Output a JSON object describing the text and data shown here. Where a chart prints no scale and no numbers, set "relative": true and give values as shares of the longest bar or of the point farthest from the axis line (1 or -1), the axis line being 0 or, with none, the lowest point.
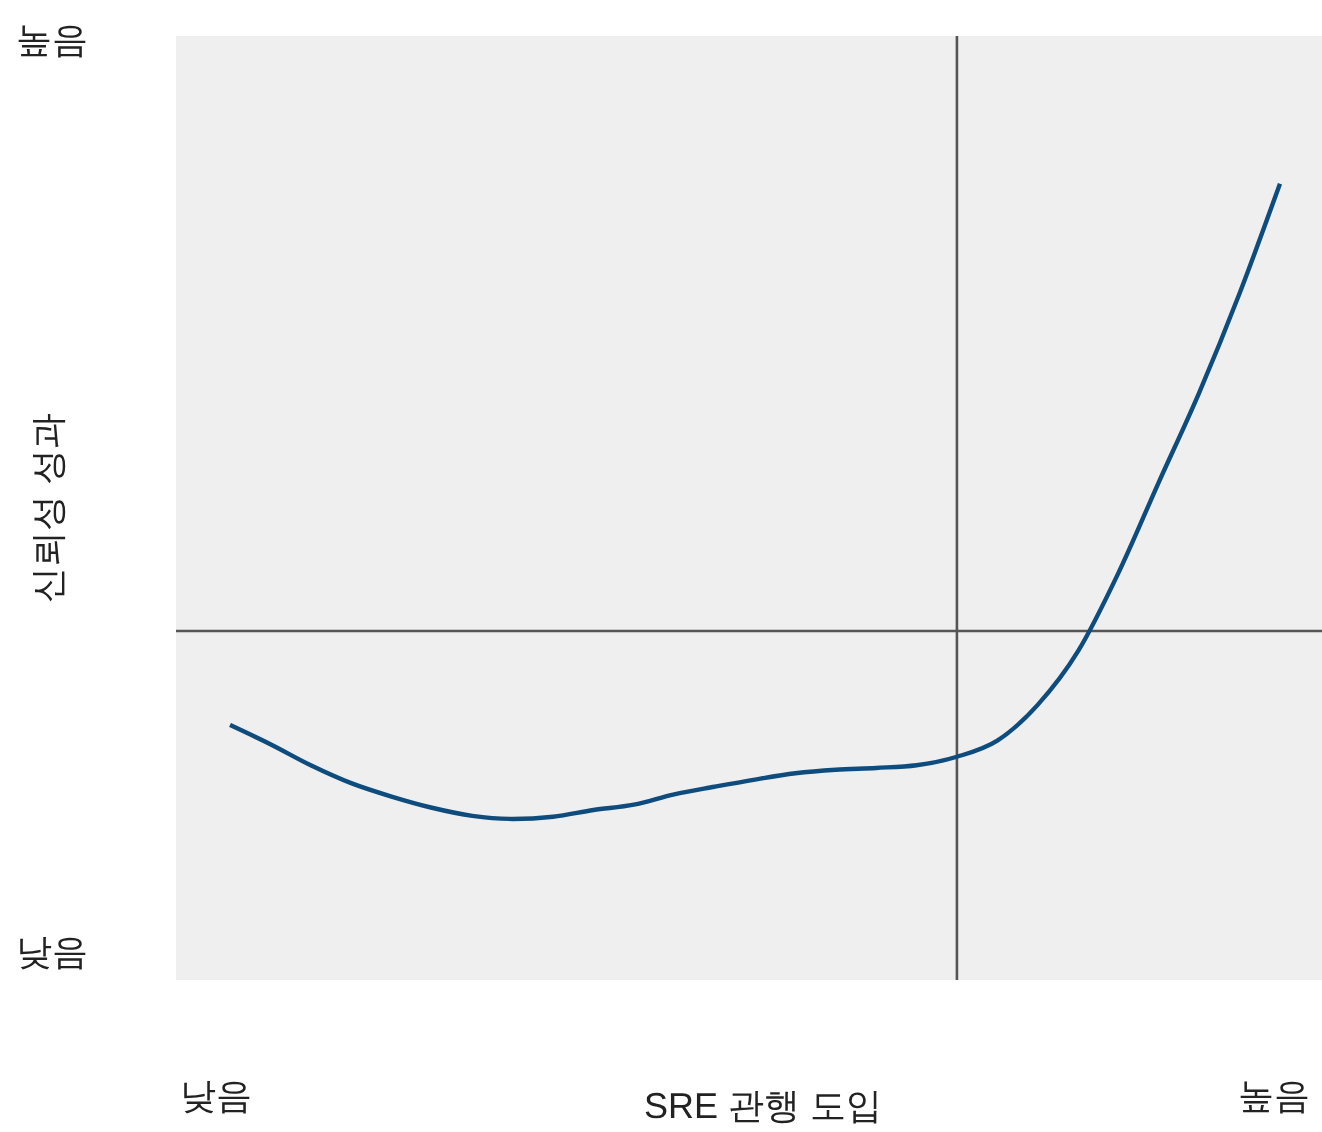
{
  "chart_data": {
    "type": "line",
    "relative": true,
    "ylabel": "신뢰성 성과",
    "categories": [
      null,
      null,
      null,
      null,
      null,
      null,
      null,
      null,
      null,
      null,
      null,
      null,
      null,
      null,
      null,
      null,
      null,
      null,
      null,
      null,
      null,
      null,
      null,
      null,
      null,
      null,
      null
    ],
    "annotations": [
      "높음",
      "낮음",
      "낮음",
      "높음",
      "SRE 관행 도입"
    ],
    "series": [
      {
        "color": "#0e4c7e",
        "values": [
          -0.21,
          -0.253,
          -0.3,
          -0.34,
          -0.37,
          -0.395,
          -0.413,
          -0.42,
          -0.415,
          -0.4,
          -0.388,
          -0.365,
          -0.348,
          -0.332,
          -0.318,
          -0.31,
          -0.306,
          -0.3,
          -0.281,
          -0.245,
          -0.165,
          -0.045,
          0.13,
          0.333,
          0.533,
          0.755,
          1
        ]
      }
    ],
    "grid": false,
    "legend": false,
    "marker": "none",
    "line_style": "solid"
  }
}
